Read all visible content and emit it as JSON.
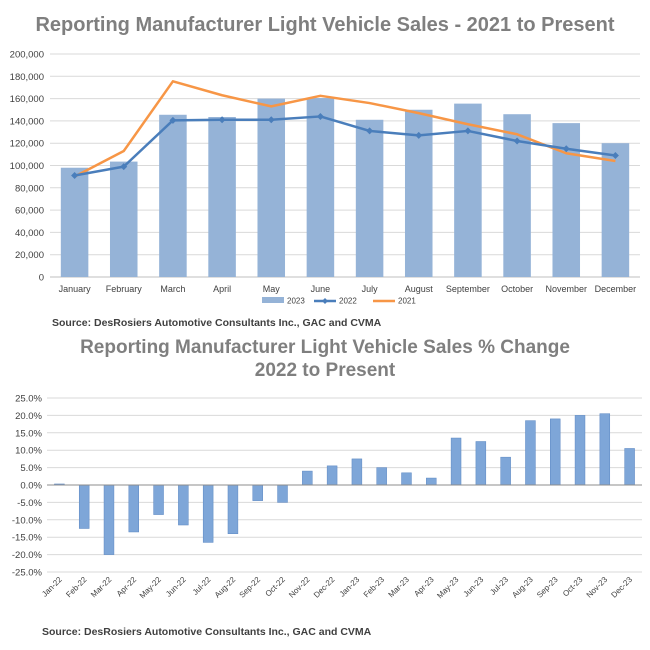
{
  "colors": {
    "bar2023": "#95b3d7",
    "line2022": "#4a7ebb",
    "line2021": "#f79646",
    "pctBar": "#7ea6d8",
    "grid": "#d9d9d9",
    "title": "#7f7f7f"
  },
  "page": {
    "title1": "Reporting Manufacturer Light Vehicle Sales - 2021 to Present",
    "source1": "Source:  DesRosiers Automotive Consultants Inc., GAC and CVMA",
    "title2_line1": "Reporting Manufacturer Light Vehicle Sales % Change",
    "title2_line2": "2022 to Present",
    "source2": "Source:  DesRosiers Automotive Consultants Inc., GAC and CVMA"
  },
  "chart_data": [
    {
      "type": "bar",
      "title": "Reporting Manufacturer Light Vehicle Sales - 2021 to Present",
      "categories": [
        "January",
        "February",
        "March",
        "April",
        "May",
        "June",
        "July",
        "August",
        "September",
        "October",
        "November",
        "December"
      ],
      "ylim": [
        0,
        200000
      ],
      "yticks": [
        "0",
        "20,000",
        "40,000",
        "60,000",
        "80,000",
        "100,000",
        "120,000",
        "140,000",
        "160,000",
        "180,000",
        "200,000"
      ],
      "grid": true,
      "legend": "bottom",
      "series": [
        {
          "name": "2023",
          "kind": "bar",
          "values": [
            98000,
            103500,
            145500,
            143500,
            160000,
            160500,
            141000,
            150000,
            155500,
            146000,
            138000,
            120000
          ]
        },
        {
          "name": "2022",
          "kind": "line",
          "marker": "diamond",
          "values": [
            91000,
            99000,
            140500,
            141000,
            141000,
            144000,
            131000,
            127000,
            131000,
            122000,
            115000,
            109000
          ]
        },
        {
          "name": "2021",
          "kind": "line",
          "values": [
            90000,
            113000,
            175500,
            163000,
            153000,
            162500,
            156000,
            147000,
            137000,
            128000,
            111000,
            104000
          ]
        }
      ]
    },
    {
      "type": "bar",
      "title": "Reporting Manufacturer Light Vehicle Sales % Change 2022 to Present",
      "categories": [
        "Jan-22",
        "Feb-22",
        "Mar-22",
        "Apr-22",
        "May-22",
        "Jun-22",
        "Jul-22",
        "Aug-22",
        "Sep-22",
        "Oct-22",
        "Nov-22",
        "Dec-22",
        "Jan-23",
        "Feb-23",
        "Mar-23",
        "Apr-23",
        "May-23",
        "Jun-23",
        "Jul-23",
        "Aug-23",
        "Sep-23",
        "Oct-23",
        "Nov-23",
        "Dec-23"
      ],
      "values": [
        0.3,
        -12.5,
        -20.0,
        -13.5,
        -8.5,
        -11.5,
        -16.5,
        -14.0,
        -4.5,
        -5.0,
        4.0,
        5.5,
        7.5,
        5.0,
        3.5,
        2.0,
        13.5,
        12.5,
        8.0,
        18.5,
        19.0,
        20.0,
        20.5,
        10.5
      ],
      "ylim": [
        -25,
        25
      ],
      "yticks": [
        "25.0%",
        "20.0%",
        "15.0%",
        "10.0%",
        "5.0%",
        "0.0%",
        "-5.0%",
        "-10.0%",
        "-15.0%",
        "-20.0%",
        "-25.0%"
      ],
      "grid": true
    }
  ]
}
